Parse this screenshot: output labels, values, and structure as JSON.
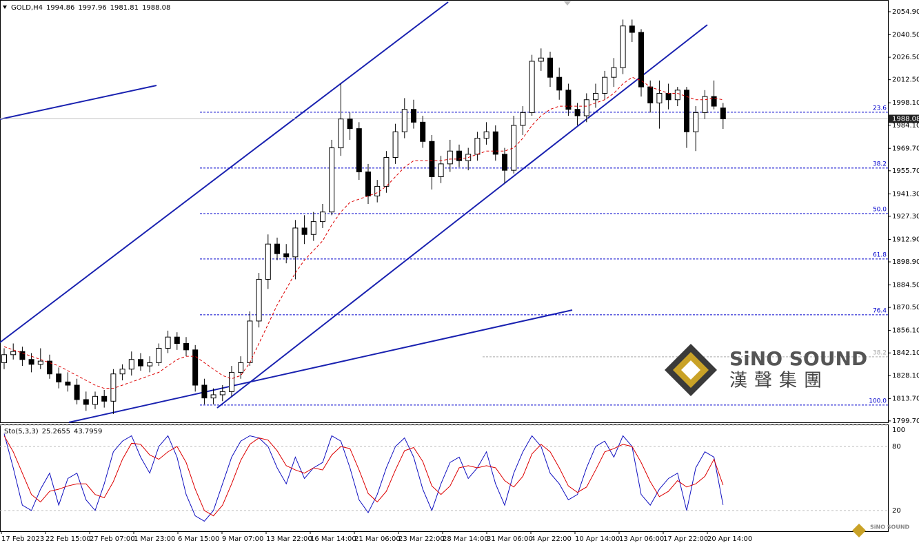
{
  "chart_data": [
    {
      "type": "candlestick",
      "title": "GOLD,H4",
      "ohlc": [
        [
          1836,
          1845,
          1832,
          1841
        ],
        [
          1841,
          1848,
          1838,
          1843
        ],
        [
          1843,
          1846,
          1834,
          1838
        ],
        [
          1838,
          1842,
          1830,
          1835
        ],
        [
          1835,
          1845,
          1832,
          1837
        ],
        [
          1837,
          1841,
          1826,
          1829
        ],
        [
          1829,
          1833,
          1820,
          1824
        ],
        [
          1824,
          1830,
          1818,
          1822
        ],
        [
          1822,
          1826,
          1810,
          1813
        ],
        [
          1813,
          1818,
          1806,
          1810
        ],
        [
          1810,
          1818,
          1807,
          1815
        ],
        [
          1815,
          1819,
          1808,
          1812
        ],
        [
          1812,
          1832,
          1804,
          1829
        ],
        [
          1829,
          1835,
          1825,
          1832
        ],
        [
          1832,
          1843,
          1828,
          1838
        ],
        [
          1838,
          1842,
          1831,
          1834
        ],
        [
          1834,
          1840,
          1830,
          1836
        ],
        [
          1836,
          1848,
          1834,
          1845
        ],
        [
          1845,
          1856,
          1842,
          1852
        ],
        [
          1852,
          1855,
          1844,
          1848
        ],
        [
          1848,
          1852,
          1840,
          1844
        ],
        [
          1844,
          1847,
          1818,
          1822
        ],
        [
          1822,
          1826,
          1810,
          1814
        ],
        [
          1814,
          1820,
          1810,
          1816
        ],
        [
          1816,
          1822,
          1812,
          1818
        ],
        [
          1818,
          1834,
          1815,
          1830
        ],
        [
          1830,
          1840,
          1826,
          1836
        ],
        [
          1836,
          1868,
          1834,
          1862
        ],
        [
          1862,
          1892,
          1858,
          1888
        ],
        [
          1888,
          1916,
          1882,
          1910
        ],
        [
          1910,
          1914,
          1900,
          1904
        ],
        [
          1904,
          1910,
          1898,
          1902
        ],
        [
          1902,
          1925,
          1888,
          1920
        ],
        [
          1920,
          1928,
          1910,
          1916
        ],
        [
          1916,
          1930,
          1912,
          1924
        ],
        [
          1924,
          1935,
          1920,
          1930
        ],
        [
          1930,
          1975,
          1928,
          1970
        ],
        [
          1970,
          2010,
          1965,
          1988
        ],
        [
          1988,
          1992,
          1975,
          1982
        ],
        [
          1982,
          1986,
          1950,
          1955
        ],
        [
          1955,
          1960,
          1935,
          1940
        ],
        [
          1940,
          1950,
          1936,
          1946
        ],
        [
          1946,
          1968,
          1942,
          1964
        ],
        [
          1964,
          1985,
          1960,
          1980
        ],
        [
          1980,
          2001,
          1976,
          1994
        ],
        [
          1994,
          2000,
          1982,
          1986
        ],
        [
          1986,
          1990,
          1970,
          1974
        ],
        [
          1974,
          1978,
          1944,
          1952
        ],
        [
          1952,
          1965,
          1948,
          1960
        ],
        [
          1960,
          1975,
          1955,
          1968
        ],
        [
          1968,
          1972,
          1958,
          1962
        ],
        [
          1962,
          1970,
          1956,
          1966
        ],
        [
          1966,
          1980,
          1962,
          1976
        ],
        [
          1976,
          1986,
          1972,
          1980
        ],
        [
          1980,
          1984,
          1962,
          1966
        ],
        [
          1966,
          1970,
          1948,
          1956
        ],
        [
          1956,
          1990,
          1954,
          1984
        ],
        [
          1984,
          1996,
          1978,
          1992
        ],
        [
          1992,
          2028,
          1990,
          2024
        ],
        [
          2024,
          2032,
          2018,
          2026
        ],
        [
          2026,
          2030,
          2008,
          2014
        ],
        [
          2014,
          2020,
          2000,
          2006
        ],
        [
          2006,
          2010,
          1990,
          1994
        ],
        [
          1994,
          1998,
          1984,
          1990
        ],
        [
          1990,
          2004,
          1986,
          2000
        ],
        [
          2000,
          2010,
          1995,
          2004
        ],
        [
          2004,
          2018,
          2000,
          2014
        ],
        [
          2014,
          2026,
          2008,
          2020
        ],
        [
          2020,
          2050,
          2016,
          2046
        ],
        [
          2046,
          2050,
          2036,
          2042
        ],
        [
          2042,
          2044,
          2002,
          2008
        ],
        [
          2008,
          2012,
          1992,
          1998
        ],
        [
          1998,
          2012,
          1982,
          2004
        ],
        [
          2004,
          2010,
          1994,
          2000
        ],
        [
          2000,
          2008,
          1996,
          2006
        ],
        [
          2006,
          2008,
          1970,
          1980
        ],
        [
          1980,
          1996,
          1968,
          1992
        ],
        [
          1992,
          2006,
          1988,
          2002
        ],
        [
          2002,
          2012,
          1994,
          1996
        ],
        [
          1994.86,
          1997.96,
          1981.81,
          1988.08
        ]
      ],
      "ma": {
        "color": "#dd0000",
        "values": [
          1846,
          1844,
          1842,
          1840,
          1838,
          1836,
          1834,
          1831,
          1828,
          1825,
          1822,
          1820,
          1820,
          1822,
          1824,
          1826,
          1828,
          1830,
          1834,
          1838,
          1840,
          1840,
          1836,
          1832,
          1828,
          1826,
          1828,
          1836,
          1848,
          1860,
          1872,
          1882,
          1892,
          1900,
          1906,
          1912,
          1922,
          1930,
          1936,
          1938,
          1940,
          1942,
          1946,
          1952,
          1958,
          1962,
          1962,
          1962,
          1962,
          1963,
          1963,
          1964,
          1966,
          1968,
          1968,
          1968,
          1970,
          1976,
          1984,
          1990,
          1994,
          1996,
          1996,
          1996,
          1996,
          1998,
          2000,
          2004,
          2010,
          2014,
          2012,
          2008,
          2006,
          2004,
          2004,
          2002,
          2000,
          2000,
          2001,
          2000
        ]
      },
      "ylim": [
        1798.8,
        2062.2
      ],
      "yticks": [
        {
          "value": 2054.9,
          "label": "2054.90"
        },
        {
          "value": 2040.5,
          "label": "2040.50"
        },
        {
          "value": 2026.5,
          "label": "2026.50"
        },
        {
          "value": 2012.5,
          "label": "2012.50"
        },
        {
          "value": 1998.1,
          "label": "1998.10"
        },
        {
          "value": 1984.1,
          "label": "1984.10"
        },
        {
          "value": 1969.7,
          "label": "1969.70"
        },
        {
          "value": 1955.7,
          "label": "1955.70"
        },
        {
          "value": 1941.3,
          "label": "1941.30"
        },
        {
          "value": 1927.3,
          "label": "1927.30"
        },
        {
          "value": 1912.9,
          "label": "1912.90"
        },
        {
          "value": 1898.9,
          "label": "1898.90"
        },
        {
          "value": 1884.5,
          "label": "1884.50"
        },
        {
          "value": 1870.5,
          "label": "1870.50"
        },
        {
          "value": 1856.1,
          "label": "1856.10"
        },
        {
          "value": 1842.1,
          "label": "1842.10"
        },
        {
          "value": 1828.1,
          "label": "1828.10"
        },
        {
          "value": 1813.7,
          "label": "1813.70"
        },
        {
          "value": 1799.7,
          "label": "1799.70"
        }
      ],
      "fib_levels": [
        {
          "label": "23.6",
          "value": 1992.2,
          "color": "#0000cc"
        },
        {
          "label": "38.2",
          "value": 1957.4,
          "color": "#0000cc"
        },
        {
          "label": "50.0",
          "value": 1929.0,
          "color": "#0000cc"
        },
        {
          "label": "61.8",
          "value": 1900.7,
          "color": "#0000cc"
        },
        {
          "label": "76.4",
          "value": 1865.9,
          "color": "#0000cc"
        },
        {
          "label": "38.2",
          "value": 1839.7,
          "color": "#aaaaaa"
        },
        {
          "label": "100.0",
          "value": 1809.6,
          "color": "#0000cc"
        }
      ],
      "x_labels": [
        "17 Feb 2023",
        "22 Feb 15:00",
        "27 Feb 07:00",
        "1 Mar 23:00",
        "6 Mar 15:00",
        "9 Mar 07:00",
        "13 Mar 22:00",
        "16 Mar 14:00",
        "21 Mar 06:00",
        "23 Mar 22:00",
        "28 Mar 14:00",
        "31 Mar 06:00",
        "4 Apr 22:00",
        "10 Apr 14:00",
        "13 Apr 06:00",
        "17 Apr 22:00",
        "20 Apr 14:00"
      ]
    },
    {
      "type": "line",
      "title": "Sto(5,3,3)",
      "series": [
        {
          "color": "#1010c0",
          "values": [
            92,
            60,
            25,
            20,
            40,
            55,
            25,
            50,
            55,
            30,
            20,
            45,
            75,
            85,
            90,
            70,
            55,
            80,
            90,
            70,
            35,
            15,
            10,
            20,
            45,
            70,
            85,
            90,
            88,
            80,
            60,
            45,
            70,
            50,
            60,
            65,
            90,
            85,
            60,
            30,
            18,
            35,
            60,
            80,
            88,
            70,
            40,
            20,
            45,
            65,
            70,
            50,
            60,
            75,
            45,
            25,
            55,
            75,
            90,
            80,
            55,
            45,
            30,
            35,
            60,
            80,
            85,
            70,
            90,
            80,
            35,
            25,
            40,
            50,
            55,
            20,
            60,
            75,
            70,
            25.2655
          ]
        },
        {
          "color": "#dd0000",
          "values": [
            90,
            75,
            55,
            35,
            28,
            38,
            40,
            43,
            45,
            45,
            35,
            32,
            47,
            68,
            83,
            82,
            72,
            68,
            75,
            80,
            65,
            40,
            20,
            15,
            25,
            45,
            67,
            82,
            88,
            86,
            76,
            62,
            58,
            55,
            60,
            58,
            72,
            80,
            78,
            58,
            36,
            28,
            38,
            58,
            76,
            79,
            66,
            43,
            35,
            43,
            60,
            62,
            60,
            62,
            60,
            48,
            42,
            52,
            73,
            82,
            75,
            60,
            43,
            37,
            42,
            58,
            75,
            78,
            82,
            80,
            65,
            47,
            33,
            38,
            48,
            42,
            45,
            52,
            68,
            43.7959
          ]
        }
      ],
      "ylim": [
        0.6,
        100
      ],
      "yticks": [
        100,
        80,
        20
      ]
    }
  ],
  "logo": {
    "text": "SiNO SOUND",
    "subtitle": "漢聲集團"
  }
}
